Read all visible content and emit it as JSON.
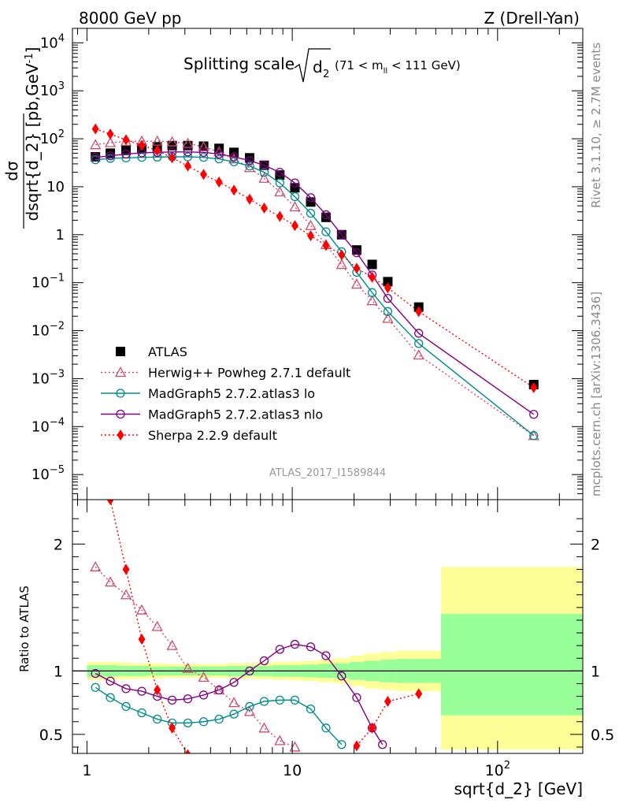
{
  "header": {
    "energy": "8000 GeV pp",
    "process": "Z (Drell-Yan)"
  },
  "side": {
    "rivet": "Rivet 3.1.10, ≥ 2.7M events",
    "source": "mcplots.cern.ch [arXiv:1306.3436]"
  },
  "chart_data": [
    {
      "type": "scatter",
      "title": "Splitting scale",
      "title_sqrt": "d",
      "title_sqrt_sub": "2",
      "title_cut_pre": "(71 < m",
      "title_cut_sub": "ll",
      "title_cut_post": " < 111 GeV)",
      "ylabel_main": "dσ",
      "ylabel_den": "dsqrt{d_2} [pb,GeV",
      "ylabel_den_sup": "-1",
      "ylabel_den_close": "]",
      "watermark": "ATLAS_2017_I1589844",
      "log_x": true,
      "log_y": true,
      "xlim": [
        0.85,
        260
      ],
      "ylim": [
        3e-06,
        20000.0
      ],
      "yticks": [
        {
          "label": "10",
          "sup": "4",
          "exp": 4
        },
        {
          "label": "10",
          "sup": "3",
          "exp": 3
        },
        {
          "label": "10",
          "sup": "2",
          "exp": 2
        },
        {
          "label": "10",
          "sup": "",
          "exp": 1
        },
        {
          "label": "1",
          "sup": "",
          "exp": 0
        },
        {
          "label": "10",
          "sup": "−1",
          "exp": -1
        },
        {
          "label": "10",
          "sup": "−2",
          "exp": -2
        },
        {
          "label": "10",
          "sup": "−3",
          "exp": -3
        },
        {
          "label": "10",
          "sup": "−4",
          "exp": -4
        },
        {
          "label": "10",
          "sup": "−5",
          "exp": -5
        }
      ],
      "legend_position": "bottom-left",
      "series": [
        {
          "name": "ATLAS",
          "color": "#000000",
          "marker": "square",
          "x": [
            1.1,
            1.3,
            1.55,
            1.85,
            2.2,
            2.6,
            3.1,
            3.7,
            4.4,
            5.2,
            6.2,
            7.3,
            8.7,
            10.3,
            12.3,
            14.6,
            17.4,
            20.6,
            24.5,
            29.2,
            41.3,
            150
          ],
          "y": [
            42,
            50,
            57,
            63,
            68,
            72,
            72,
            70,
            63,
            52,
            40,
            28,
            17.5,
            9.5,
            4.8,
            2.3,
            1.0,
            0.48,
            0.24,
            0.105,
            0.031,
            0.00075
          ]
        },
        {
          "name": "Herwig++ Powheg 2.7.1 default",
          "color": "#cc4c6e",
          "marker": "triangle-open",
          "line": "dotted",
          "x": [
            1.1,
            1.3,
            1.55,
            1.85,
            2.2,
            2.6,
            3.1,
            3.7,
            4.4,
            5.2,
            6.2,
            7.3,
            8.7,
            10.3,
            12.3,
            14.6,
            17.4,
            20.6,
            24.5,
            29.2,
            41.3,
            150
          ],
          "y": [
            75,
            83,
            88,
            89,
            89,
            86,
            80,
            68,
            53,
            38,
            25,
            15,
            7.8,
            3.8,
            1.55,
            0.62,
            0.24,
            0.093,
            0.042,
            0.018,
            0.0031,
            6.5e-05
          ]
        },
        {
          "name": "MadGraph5 2.7.2.atlas3 lo",
          "color": "#008b8b",
          "marker": "circle-open",
          "line": "solid",
          "x": [
            1.1,
            1.3,
            1.55,
            1.85,
            2.2,
            2.6,
            3.1,
            3.7,
            4.4,
            5.2,
            6.2,
            7.3,
            8.7,
            10.3,
            12.3,
            14.6,
            17.4,
            20.6,
            24.5,
            29.2,
            41.3,
            150
          ],
          "y": [
            36.5,
            39,
            40,
            41,
            41.5,
            42,
            42,
            41,
            38,
            33,
            27,
            20,
            12,
            6.2,
            2.8,
            1.15,
            0.44,
            0.165,
            0.062,
            0.025,
            0.0054,
            6.5e-05
          ]
        },
        {
          "name": "MadGraph5 2.7.2.atlas3 nlo",
          "color": "#800080",
          "marker": "circle-open",
          "line": "solid",
          "x": [
            1.1,
            1.3,
            1.55,
            1.85,
            2.2,
            2.6,
            3.1,
            3.7,
            4.4,
            5.2,
            6.2,
            7.3,
            8.7,
            10.3,
            12.3,
            14.6,
            17.4,
            20.6,
            24.5,
            29.2,
            41.3,
            150
          ],
          "y": [
            41,
            44,
            48,
            51,
            52,
            53,
            53,
            52,
            48,
            42,
            35,
            28,
            20,
            12,
            5.9,
            2.6,
            1.0,
            0.42,
            0.145,
            0.047,
            0.0088,
            0.00018
          ]
        },
        {
          "name": "Sherpa 2.2.9 default",
          "color": "#ff0000",
          "marker": "diamond",
          "line": "dotted",
          "x": [
            1.1,
            1.3,
            1.55,
            1.85,
            2.2,
            2.6,
            3.1,
            3.7,
            4.4,
            5.2,
            6.2,
            7.3,
            8.7,
            10.3,
            12.3,
            14.6,
            17.4,
            20.6,
            24.5,
            29.2,
            41.3,
            150
          ],
          "y": [
            160,
            125,
            95,
            73,
            57,
            40,
            27,
            18,
            12.5,
            8.5,
            5.5,
            3.6,
            2.4,
            1.55,
            0.95,
            0.6,
            0.38,
            0.2,
            0.13,
            0.078,
            0.025,
            0.00065
          ]
        }
      ]
    },
    {
      "type": "scatter",
      "ylabel": "Ratio to ATLAS",
      "xlabel": "sqrt{d_2} [GeV]",
      "log_x": true,
      "xlim": [
        0.85,
        260
      ],
      "ylim": [
        0.35,
        2.35
      ],
      "ytick_labels": [
        "2",
        "1",
        "0.5"
      ],
      "yticks": [
        2,
        1,
        0.5
      ],
      "xtick_labels": [
        {
          "label": "1",
          "sup": "",
          "value": 1
        },
        {
          "label": "10",
          "sup": "",
          "value": 10
        },
        {
          "label": "10",
          "sup": "2",
          "value": 100
        }
      ],
      "reference_line": 1,
      "bands": [
        {
          "x_edges": [
            1,
            1.2,
            1.4,
            1.7,
            2.0,
            2.4,
            2.8,
            3.4,
            4.0,
            4.8,
            5.7,
            6.7,
            8.0,
            9.5,
            11.3,
            13.4,
            16.0,
            19.0,
            22.5,
            26.8,
            32,
            53,
            260
          ],
          "yellow_lo": [
            0.93,
            0.93,
            0.935,
            0.94,
            0.94,
            0.945,
            0.945,
            0.945,
            0.945,
            0.94,
            0.94,
            0.935,
            0.93,
            0.925,
            0.92,
            0.91,
            0.9,
            0.88,
            0.86,
            0.85,
            0.84,
            0.38
          ],
          "yellow_hi": [
            1.07,
            1.07,
            1.065,
            1.06,
            1.06,
            1.055,
            1.055,
            1.055,
            1.055,
            1.06,
            1.06,
            1.065,
            1.07,
            1.075,
            1.08,
            1.09,
            1.1,
            1.12,
            1.14,
            1.15,
            1.16,
            1.82
          ],
          "green_lo": [
            0.955,
            0.955,
            0.96,
            0.96,
            0.965,
            0.965,
            0.965,
            0.965,
            0.965,
            0.96,
            0.96,
            0.96,
            0.955,
            0.955,
            0.95,
            0.945,
            0.94,
            0.93,
            0.92,
            0.91,
            0.905,
            0.65
          ],
          "green_hi": [
            1.045,
            1.045,
            1.04,
            1.04,
            1.035,
            1.035,
            1.035,
            1.035,
            1.035,
            1.04,
            1.04,
            1.04,
            1.045,
            1.045,
            1.05,
            1.055,
            1.06,
            1.07,
            1.08,
            1.09,
            1.095,
            1.45
          ]
        }
      ],
      "series": [
        {
          "name": "Herwig++ Powheg 2.7.1 default",
          "x": [
            1.1,
            1.3,
            1.55,
            1.85,
            2.2,
            2.6,
            3.1,
            3.7,
            4.4,
            5.2,
            6.2,
            7.3,
            8.7,
            10.3
          ],
          "y": [
            1.82,
            1.7,
            1.6,
            1.48,
            1.35,
            1.2,
            1.02,
            0.95,
            0.85,
            0.75,
            0.68,
            0.55,
            0.45,
            0.4
          ]
        },
        {
          "name": "MadGraph5 2.7.2.atlas3 lo",
          "x": [
            1.1,
            1.3,
            1.55,
            1.85,
            2.2,
            2.6,
            3.1,
            3.7,
            4.4,
            5.2,
            6.2,
            7.3,
            8.7,
            10.3,
            12.3,
            14.6,
            17.4
          ],
          "y": [
            0.87,
            0.79,
            0.72,
            0.67,
            0.62,
            0.59,
            0.59,
            0.6,
            0.62,
            0.66,
            0.72,
            0.76,
            0.77,
            0.77,
            0.7,
            0.55,
            0.42
          ]
        },
        {
          "name": "MadGraph5 2.7.2.atlas3 nlo",
          "x": [
            1.1,
            1.3,
            1.55,
            1.85,
            2.2,
            2.6,
            3.1,
            3.7,
            4.4,
            5.2,
            6.2,
            7.3,
            8.7,
            10.3,
            12.3,
            14.6,
            17.4,
            20.6,
            24.5,
            27.5
          ],
          "y": [
            0.98,
            0.92,
            0.86,
            0.84,
            0.8,
            0.77,
            0.78,
            0.81,
            0.85,
            0.91,
            1.0,
            1.08,
            1.17,
            1.21,
            1.19,
            1.12,
            0.96,
            0.79,
            0.55,
            0.42
          ]
        },
        {
          "name": "Sherpa 2.2.9 default",
          "x": [
            1.3,
            1.55,
            1.85,
            2.2,
            2.6,
            3.1,
            20.6,
            24.5,
            29.2,
            41.3
          ],
          "y": [
            2.35,
            1.8,
            1.25,
            0.85,
            0.55,
            0.34,
            0.41,
            0.55,
            0.76,
            0.82
          ]
        }
      ]
    }
  ]
}
